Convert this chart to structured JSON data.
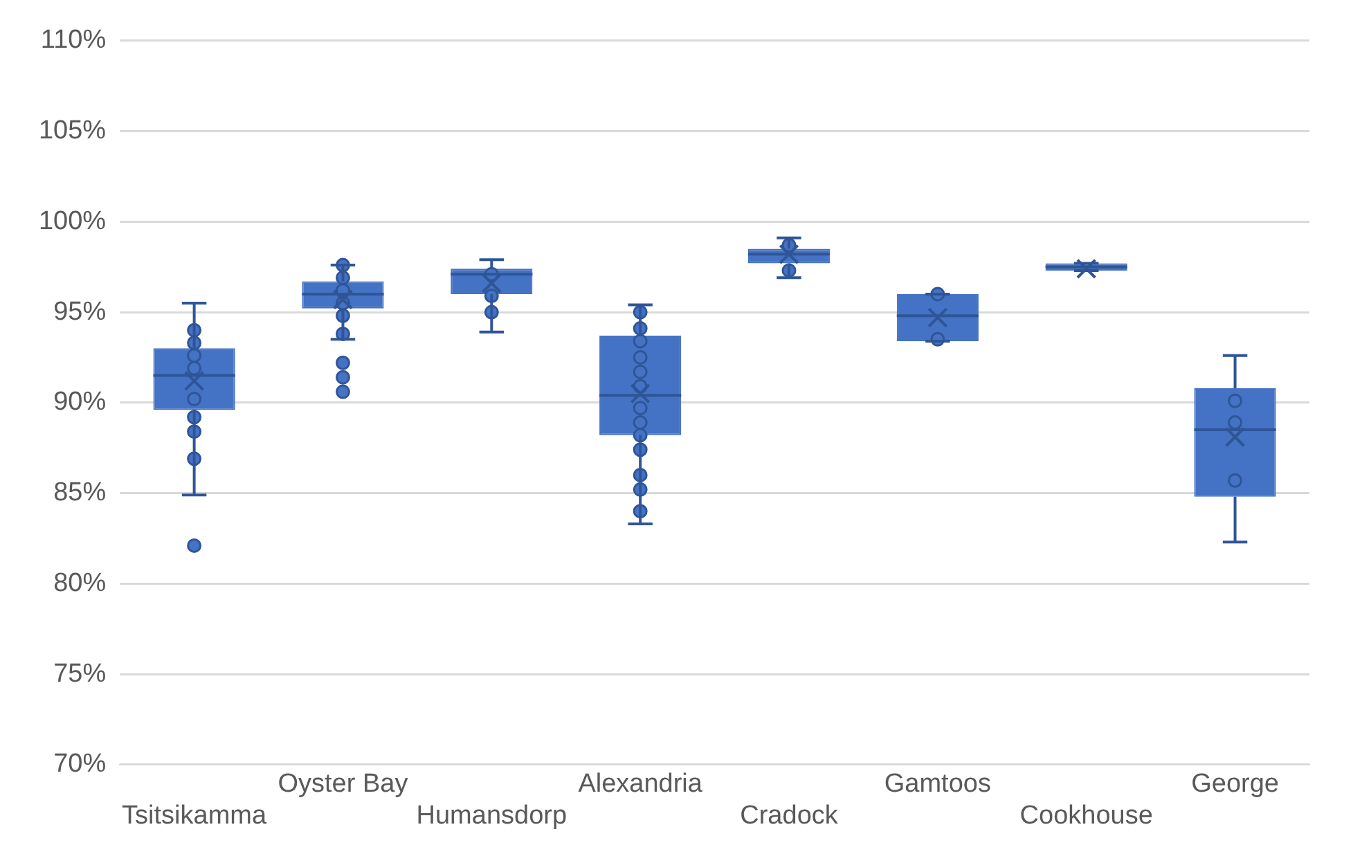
{
  "chart_data": {
    "type": "box",
    "categories": [
      "Tsitsikamma",
      "Oyster Bay",
      "Humansdorp",
      "Alexandria",
      "Cradock",
      "Gamtoos",
      "Cookhouse",
      "George"
    ],
    "color": "#4472c4",
    "boxes": [
      {
        "low": 84.9,
        "q1": 89.6,
        "median": 91.5,
        "q3": 93.0,
        "high": 95.5,
        "mean": 91.2,
        "outliers": [
          82.1
        ]
      },
      {
        "low": 93.5,
        "q1": 95.2,
        "median": 96.0,
        "q3": 96.7,
        "high": 97.6,
        "mean": 95.7,
        "outliers": [
          92.2,
          91.4,
          90.6
        ]
      },
      {
        "low": 93.9,
        "q1": 96.0,
        "median": 97.1,
        "q3": 97.4,
        "high": 97.9,
        "mean": 96.6
      },
      {
        "low": 83.3,
        "q1": 88.2,
        "median": 90.4,
        "q3": 93.7,
        "high": 95.4,
        "mean": 90.5
      },
      {
        "low": 96.9,
        "q1": 97.7,
        "median": 98.2,
        "q3": 98.5,
        "high": 99.1,
        "mean": 98.2
      },
      {
        "low": 93.4,
        "q1": 93.4,
        "median": 94.8,
        "q3": 96.0,
        "high": 96.0,
        "mean": 94.7
      },
      {
        "low": 97.3,
        "q1": 97.3,
        "median": 97.5,
        "q3": 97.7,
        "high": 97.7,
        "mean": 97.4
      },
      {
        "low": 82.3,
        "q1": 84.8,
        "median": 88.5,
        "q3": 90.8,
        "high": 92.6,
        "mean": 88.1
      }
    ],
    "series": [
      {
        "type": "scatter",
        "color": "#4472c4",
        "marker": "circle",
        "x": [
          "Tsitsikamma",
          "Tsitsikamma",
          "Tsitsikamma",
          "Tsitsikamma",
          "Tsitsikamma",
          "Tsitsikamma",
          "Tsitsikamma",
          "Tsitsikamma",
          "Oyster Bay",
          "Oyster Bay",
          "Oyster Bay",
          "Oyster Bay",
          "Oyster Bay",
          "Oyster Bay",
          "Humansdorp",
          "Humansdorp",
          "Humansdorp",
          "Alexandria",
          "Alexandria",
          "Alexandria",
          "Alexandria",
          "Alexandria",
          "Alexandria",
          "Alexandria",
          "Alexandria",
          "Alexandria",
          "Alexandria",
          "Alexandria",
          "Alexandria",
          "Alexandria",
          "Cradock",
          "Cradock",
          "Gamtoos",
          "Gamtoos",
          "Cookhouse",
          "George",
          "George",
          "George"
        ],
        "values": [
          94.0,
          93.3,
          92.6,
          91.9,
          90.2,
          89.2,
          88.4,
          86.9,
          97.6,
          96.9,
          96.2,
          95.5,
          94.8,
          93.8,
          97.1,
          95.9,
          95.0,
          95.0,
          94.1,
          93.4,
          92.5,
          91.7,
          90.9,
          89.7,
          88.9,
          88.2,
          87.4,
          86.0,
          85.2,
          84.0,
          98.7,
          97.3,
          96.0,
          93.5,
          null,
          90.1,
          88.9,
          85.7
        ]
      }
    ],
    "ylim": [
      70,
      110
    ],
    "yticks": [
      {
        "value": 70,
        "label": "70%"
      },
      {
        "value": 75,
        "label": "75%"
      },
      {
        "value": 80,
        "label": "80%"
      },
      {
        "value": 85,
        "label": "85%"
      },
      {
        "value": 90,
        "label": "90%"
      },
      {
        "value": 95,
        "label": "95%"
      },
      {
        "value": 100,
        "label": "100%"
      },
      {
        "value": 105,
        "label": "105%"
      },
      {
        "value": 110,
        "label": "110%"
      }
    ],
    "grid": "y",
    "legend": false
  }
}
